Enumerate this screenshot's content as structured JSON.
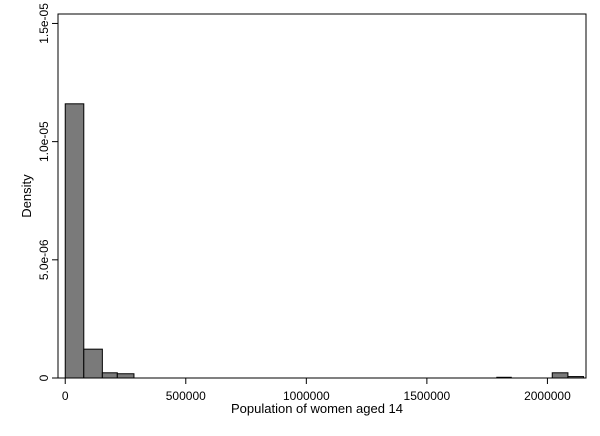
{
  "chart_data": {
    "type": "bar",
    "subtype": "histogram",
    "title": "",
    "xlabel": "Population of women aged 14",
    "ylabel": "Density",
    "xlim": [
      -30000,
      2160000
    ],
    "ylim": [
      0,
      1.54e-05
    ],
    "x_ticks": [
      {
        "value": 0,
        "label": "0"
      },
      {
        "value": 500000,
        "label": "500000"
      },
      {
        "value": 1000000,
        "label": "1000000"
      },
      {
        "value": 1500000,
        "label": "1500000"
      },
      {
        "value": 2000000,
        "label": "2000000"
      }
    ],
    "y_ticks": [
      {
        "value": 0,
        "label": "0"
      },
      {
        "value": 5e-06,
        "label": "5.0e-06"
      },
      {
        "value": 1e-05,
        "label": "1.0e-05"
      },
      {
        "value": 1.5e-05,
        "label": "1.5e-05"
      }
    ],
    "bins": [
      {
        "x0": 0,
        "x1": 77000,
        "density": 1.16e-05
      },
      {
        "x0": 77000,
        "x1": 154000,
        "density": 1.22e-06
      },
      {
        "x0": 154000,
        "x1": 216000,
        "density": 2.2e-07
      },
      {
        "x0": 216000,
        "x1": 285000,
        "density": 1.8e-07
      },
      {
        "x0": 1790000,
        "x1": 1850000,
        "density": 3e-08
      },
      {
        "x0": 2020000,
        "x1": 2085000,
        "density": 2.2e-07
      },
      {
        "x0": 2085000,
        "x1": 2150000,
        "density": 6e-08
      }
    ],
    "bar_color": "#7a7a7a",
    "bar_edge_color": "#000000",
    "grid": false
  }
}
